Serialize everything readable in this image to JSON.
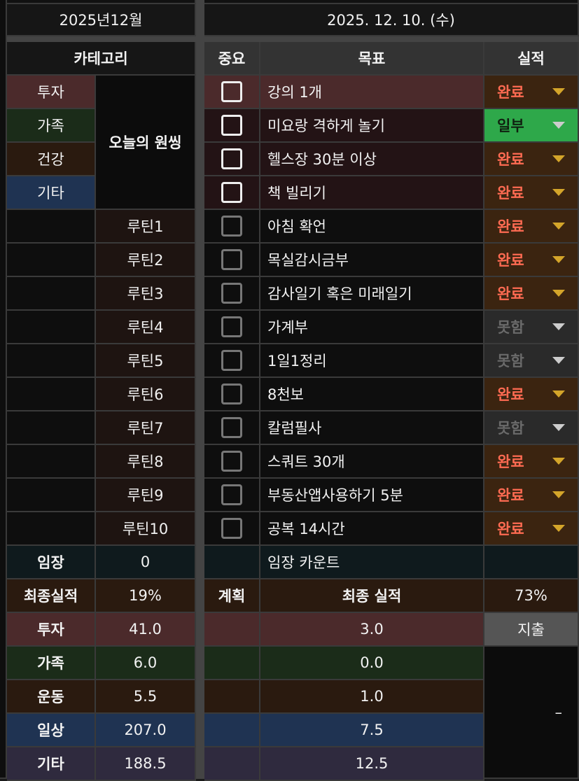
{
  "header": {
    "month": "2025년12월",
    "date": "2025. 12. 10. (수)"
  },
  "columns": {
    "category": "카테고리",
    "important": "중요",
    "goal": "목표",
    "result": "실적"
  },
  "categories": [
    {
      "label": "투자",
      "color": "#4b2a2b"
    },
    {
      "label": "가족",
      "color": "#1b2c19"
    },
    {
      "label": "건강",
      "color": "#2a1a0f"
    },
    {
      "label": "기타",
      "color": "#1f3352"
    }
  ],
  "today_label": "오늘의 원씽",
  "goals": [
    {
      "routine": "",
      "goal": "강의 1개",
      "checked": false,
      "status": "완료"
    },
    {
      "routine": "",
      "goal": "미요랑 격하게 놀기",
      "checked": false,
      "status": "일부"
    },
    {
      "routine": "",
      "goal": "헬스장 30분 이상",
      "checked": false,
      "status": "완료"
    },
    {
      "routine": "",
      "goal": "책 빌리기",
      "checked": false,
      "status": "완료"
    },
    {
      "routine": "루틴1",
      "goal": "아침 확언",
      "checked": false,
      "status": "완료"
    },
    {
      "routine": "루틴2",
      "goal": "목실감시금부",
      "checked": false,
      "status": "완료"
    },
    {
      "routine": "루틴3",
      "goal": "감사일기 혹은 미래일기",
      "checked": false,
      "status": "완료"
    },
    {
      "routine": "루틴4",
      "goal": "가계부",
      "checked": false,
      "status": "못함"
    },
    {
      "routine": "루틴5",
      "goal": "1일1정리",
      "checked": false,
      "status": "못함"
    },
    {
      "routine": "루틴6",
      "goal": "8천보",
      "checked": false,
      "status": "완료"
    },
    {
      "routine": "루틴7",
      "goal": "칼럼필사",
      "checked": false,
      "status": "못함"
    },
    {
      "routine": "루틴8",
      "goal": "스쿼트 30개",
      "checked": false,
      "status": "완료"
    },
    {
      "routine": "루틴9",
      "goal": "부동산앱사용하기 5분",
      "checked": false,
      "status": "완료"
    },
    {
      "routine": "루틴10",
      "goal": "공복 14시간",
      "checked": false,
      "status": "완료"
    }
  ],
  "status_colors": {
    "완료": {
      "bg": "#3b2410",
      "fg": "#ff6b52"
    },
    "일부": {
      "bg": "#2ea84a",
      "fg": "#102010"
    },
    "못함": {
      "bg": "#2a2a2a",
      "fg": "#6a6a6a"
    }
  },
  "imjang": {
    "label": "임장",
    "value": "0",
    "count_label": "임장 카운트"
  },
  "final": {
    "label": "최종실적",
    "value": "19%",
    "plan": "계획",
    "result_label": "최종 실적",
    "result_value": "73%"
  },
  "summary": [
    {
      "label": "투자",
      "value": "41.0",
      "result": "3.0",
      "color": "#4b2a2b"
    },
    {
      "label": "가족",
      "value": "6.0",
      "result": "0.0",
      "color": "#1b2c19"
    },
    {
      "label": "운동",
      "value": "5.5",
      "result": "1.0",
      "color": "#2a1a0f"
    },
    {
      "label": "일상",
      "value": "207.0",
      "result": "7.5",
      "color": "#1f3352"
    },
    {
      "label": "기타",
      "value": "188.5",
      "result": "12.5",
      "color": "#2f2a3e"
    }
  ],
  "expense": {
    "label": "지출",
    "value": "–"
  }
}
